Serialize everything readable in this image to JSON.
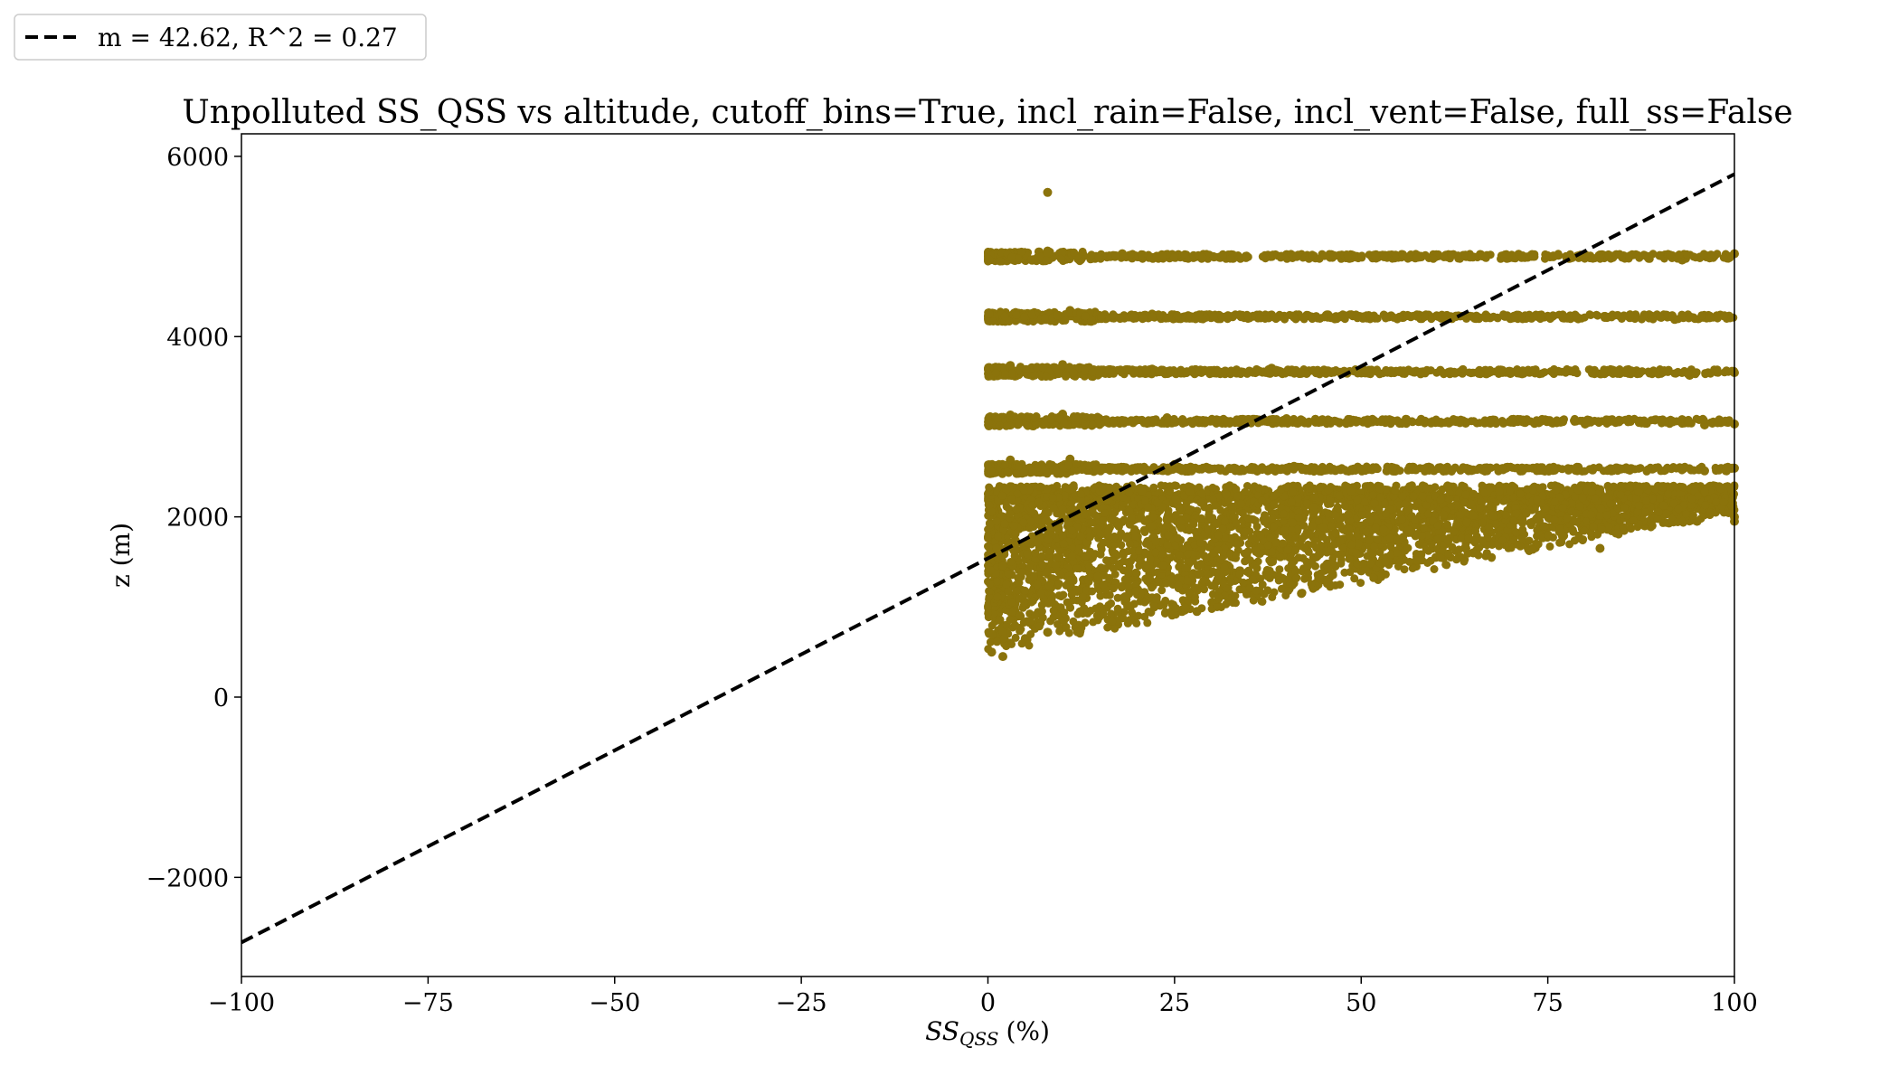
{
  "chart_data": {
    "type": "scatter",
    "title": "Unpolluted SS_QSS vs altitude, cutoff_bins=True, incl_rain=False, incl_vent=False, full_ss=False",
    "xlabel_main": "SS",
    "xlabel_sub": "QSS",
    "xlabel_unit": "(%)",
    "ylabel": "z (m)",
    "xlim": [
      -100,
      100
    ],
    "ylim": [
      -3100,
      6250
    ],
    "xticks": [
      -100,
      -75,
      -50,
      -25,
      0,
      25,
      50,
      75,
      100
    ],
    "yticks": [
      -2000,
      0,
      2000,
      4000,
      6000
    ],
    "xtick_labels": [
      "−100",
      "−75",
      "−50",
      "−25",
      "0",
      "25",
      "50",
      "75",
      "100"
    ],
    "ytick_labels": [
      "−2000",
      "0",
      "2000",
      "4000",
      "6000"
    ],
    "grid": false,
    "legend_position": "above-left",
    "legend": [
      {
        "label": "m = 42.62, R^2 = 0.27",
        "style": "dashed",
        "color": "#000000"
      }
    ],
    "marker_color": "#8b730b",
    "fit_line": {
      "slope": 42.62,
      "intercept": 1540,
      "x": [
        -100,
        100
      ],
      "color": "#000000",
      "style": "dashed"
    },
    "series": [
      {
        "values": [
          [
            8,
            5600
          ],
          [
            1,
            4870
          ],
          [
            3,
            4930
          ],
          [
            5,
            4900
          ],
          [
            8,
            4950
          ],
          [
            12,
            4880
          ],
          [
            18,
            4920
          ],
          [
            25,
            4900
          ],
          [
            32,
            4890
          ],
          [
            40,
            4910
          ],
          [
            48,
            4900
          ],
          [
            55,
            4880
          ],
          [
            62,
            4900
          ],
          [
            70,
            4880
          ],
          [
            78,
            4870
          ],
          [
            85,
            4880
          ],
          [
            90,
            4900
          ],
          [
            93,
            4850
          ],
          [
            100,
            4920
          ],
          [
            1,
            4190
          ],
          [
            4,
            4260
          ],
          [
            7,
            4220
          ],
          [
            11,
            4290
          ],
          [
            16,
            4210
          ],
          [
            22,
            4250
          ],
          [
            30,
            4220
          ],
          [
            38,
            4240
          ],
          [
            46,
            4210
          ],
          [
            54,
            4230
          ],
          [
            62,
            4220
          ],
          [
            70,
            4200
          ],
          [
            78,
            4230
          ],
          [
            86,
            4210
          ],
          [
            92,
            4190
          ],
          [
            99,
            4210
          ],
          [
            1,
            3580
          ],
          [
            3,
            3680
          ],
          [
            6,
            3620
          ],
          [
            10,
            3690
          ],
          [
            15,
            3600
          ],
          [
            22,
            3640
          ],
          [
            30,
            3610
          ],
          [
            38,
            3650
          ],
          [
            46,
            3600
          ],
          [
            54,
            3620
          ],
          [
            62,
            3610
          ],
          [
            70,
            3590
          ],
          [
            78,
            3620
          ],
          [
            86,
            3600
          ],
          [
            94,
            3570
          ],
          [
            100,
            3600
          ],
          [
            1,
            3030
          ],
          [
            3,
            3130
          ],
          [
            6,
            3080
          ],
          [
            10,
            3140
          ],
          [
            16,
            3050
          ],
          [
            24,
            3100
          ],
          [
            32,
            3060
          ],
          [
            40,
            3090
          ],
          [
            48,
            3050
          ],
          [
            56,
            3060
          ],
          [
            64,
            3040
          ],
          [
            72,
            3050
          ],
          [
            80,
            3030
          ],
          [
            88,
            3040
          ],
          [
            96,
            3020
          ],
          [
            100,
            3030
          ],
          [
            1,
            2520
          ],
          [
            3,
            2630
          ],
          [
            7,
            2560
          ],
          [
            11,
            2640
          ],
          [
            17,
            2540
          ],
          [
            25,
            2580
          ],
          [
            33,
            2540
          ],
          [
            41,
            2560
          ],
          [
            49,
            2530
          ],
          [
            57,
            2550
          ],
          [
            65,
            2520
          ],
          [
            73,
            2540
          ],
          [
            81,
            2520
          ],
          [
            89,
            2530
          ],
          [
            96,
            2510
          ],
          [
            100,
            2540
          ],
          [
            0.5,
            500
          ],
          [
            1,
            700
          ],
          [
            2,
            450
          ],
          [
            3,
            600
          ],
          [
            4,
            900
          ],
          [
            5,
            650
          ],
          [
            6,
            800
          ],
          [
            8,
            720
          ],
          [
            10,
            900
          ],
          [
            12,
            780
          ],
          [
            15,
            1000
          ],
          [
            18,
            880
          ],
          [
            22,
            1100
          ],
          [
            26,
            950
          ],
          [
            30,
            1050
          ],
          [
            35,
            1150
          ],
          [
            40,
            1200
          ],
          [
            45,
            1300
          ],
          [
            50,
            1400
          ],
          [
            55,
            1500
          ],
          [
            60,
            1550
          ],
          [
            65,
            1600
          ],
          [
            70,
            1700
          ],
          [
            75,
            1800
          ],
          [
            80,
            1900
          ],
          [
            85,
            2000
          ],
          [
            90,
            2050
          ],
          [
            95,
            2100
          ],
          [
            100,
            2000
          ],
          [
            1,
            1200
          ],
          [
            1,
            1800
          ],
          [
            2,
            2300
          ],
          [
            4,
            1500
          ],
          [
            6,
            2000
          ],
          [
            9,
            1300
          ],
          [
            13,
            1800
          ],
          [
            17,
            2200
          ],
          [
            21,
            1600
          ],
          [
            25,
            2000
          ],
          [
            30,
            1700
          ],
          [
            35,
            2100
          ],
          [
            40,
            1800
          ],
          [
            45,
            2200
          ],
          [
            50,
            1900
          ],
          [
            55,
            2150
          ],
          [
            60,
            2000
          ],
          [
            65,
            2250
          ],
          [
            70,
            2100
          ],
          [
            75,
            2200
          ],
          [
            80,
            2150
          ],
          [
            86,
            2250
          ],
          [
            92,
            2200
          ],
          [
            98,
            2250
          ],
          [
            58,
            1580
          ],
          [
            64,
            1650
          ],
          [
            71,
            1800
          ],
          [
            77,
            1780
          ],
          [
            82,
            1650
          ],
          [
            88,
            1900
          ],
          [
            95,
            1950
          ],
          [
            100,
            1950
          ],
          [
            42,
            1150
          ],
          [
            36,
            1120
          ],
          [
            28,
            950
          ],
          [
            19,
            850
          ]
        ]
      }
    ]
  }
}
